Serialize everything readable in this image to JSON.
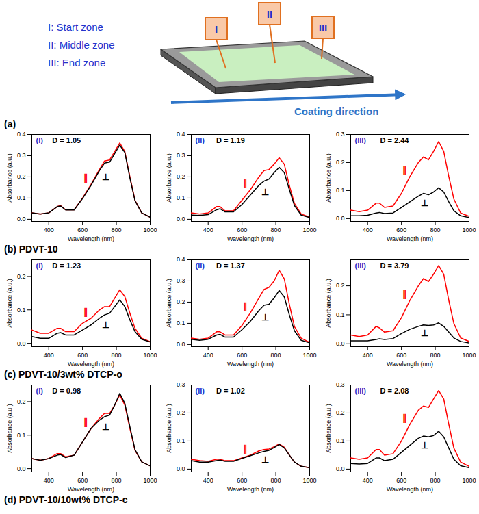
{
  "schematic": {
    "zones": [
      "I: Start zone",
      "II: Middle zone",
      "III: End zone"
    ],
    "boxes": [
      "I",
      "II",
      "III"
    ],
    "arrow_label": "Coating direction"
  },
  "captions": [
    "(a)",
    "(b) PDVT-10",
    "(c) PDVT-10/3wt% DTCP-o",
    "(d) PDVT-10/10wt% DTCP-c"
  ],
  "chart_data": [
    {
      "type": "line",
      "zone": "(I)",
      "title": "D = 1.05",
      "x_label": "Wavelength (nm)",
      "y_label": "Absorbance (a.u.)",
      "x": [
        300,
        350,
        400,
        450,
        470,
        500,
        550,
        600,
        650,
        700,
        730,
        760,
        790,
        820,
        850,
        880,
        910,
        950,
        1000
      ],
      "xlim": [
        300,
        1000
      ],
      "xticks": [
        400,
        600,
        800,
        1000
      ],
      "ylim": [
        -0.01,
        0.4
      ],
      "yticks": [
        {
          "value": 0,
          "label": "0.0"
        },
        0.1,
        0.2,
        0.3,
        0.4
      ],
      "series": [
        {
          "name": "∥",
          "color": "red",
          "values": [
            0.03,
            0.025,
            0.03,
            0.06,
            0.065,
            0.045,
            0.045,
            0.1,
            0.165,
            0.235,
            0.275,
            0.28,
            0.32,
            0.36,
            0.32,
            0.2,
            0.09,
            0.03,
            0.01
          ]
        },
        {
          "name": "⊥",
          "color": "black",
          "values": [
            0.03,
            0.025,
            0.03,
            0.06,
            0.063,
            0.044,
            0.044,
            0.098,
            0.16,
            0.23,
            0.265,
            0.27,
            0.31,
            0.35,
            0.315,
            0.195,
            0.088,
            0.03,
            0.01
          ]
        }
      ]
    },
    {
      "type": "line",
      "zone": "(II)",
      "title": "D = 1.19",
      "x_label": "Wavelength (nm)",
      "y_label": "Absorbance (a.u.)",
      "x": [
        300,
        350,
        400,
        450,
        470,
        500,
        550,
        600,
        650,
        700,
        730,
        760,
        790,
        820,
        850,
        880,
        910,
        950,
        1000
      ],
      "xlim": [
        300,
        1000
      ],
      "xticks": [
        400,
        600,
        800,
        1000
      ],
      "ylim": [
        -0.01,
        0.4
      ],
      "yticks": [
        {
          "value": 0,
          "label": "0.0"
        },
        0.1,
        0.2,
        0.3,
        0.4
      ],
      "series": [
        {
          "name": "∥",
          "color": "red",
          "values": [
            0.03,
            0.025,
            0.03,
            0.06,
            0.06,
            0.04,
            0.04,
            0.09,
            0.14,
            0.2,
            0.23,
            0.235,
            0.26,
            0.29,
            0.26,
            0.16,
            0.075,
            0.025,
            0.01
          ]
        },
        {
          "name": "⊥",
          "color": "black",
          "values": [
            0.02,
            0.018,
            0.022,
            0.045,
            0.05,
            0.035,
            0.035,
            0.07,
            0.115,
            0.16,
            0.18,
            0.19,
            0.22,
            0.245,
            0.22,
            0.14,
            0.065,
            0.02,
            0.008
          ]
        }
      ]
    },
    {
      "type": "line",
      "zone": "(III)",
      "title": "D = 2.44",
      "x_label": "Wavelength (nm)",
      "y_label": "Absorbance (a.u.)",
      "x": [
        300,
        350,
        400,
        450,
        470,
        500,
        550,
        600,
        650,
        700,
        730,
        760,
        790,
        820,
        850,
        880,
        910,
        950,
        1000
      ],
      "xlim": [
        300,
        1000
      ],
      "xticks": [
        400,
        600,
        800,
        1000
      ],
      "ylim": [
        -0.01,
        0.3
      ],
      "yticks": [
        {
          "value": 0,
          "label": "0.0"
        },
        0.1,
        0.2,
        0.3
      ],
      "series": [
        {
          "name": "∥",
          "color": "red",
          "values": [
            0.03,
            0.025,
            0.03,
            0.055,
            0.055,
            0.04,
            0.045,
            0.09,
            0.15,
            0.2,
            0.22,
            0.21,
            0.24,
            0.275,
            0.24,
            0.15,
            0.07,
            0.02,
            0.008
          ]
        },
        {
          "name": "⊥",
          "color": "black",
          "values": [
            0.01,
            0.01,
            0.012,
            0.02,
            0.022,
            0.018,
            0.02,
            0.04,
            0.06,
            0.08,
            0.09,
            0.085,
            0.095,
            0.11,
            0.095,
            0.06,
            0.028,
            0.01,
            0.004
          ]
        }
      ]
    },
    {
      "type": "line",
      "zone": "(I)",
      "title": "D = 1.23",
      "x_label": "Wavelength (nm)",
      "y_label": "Absorbance (a.u.)",
      "x": [
        300,
        350,
        400,
        450,
        470,
        500,
        550,
        600,
        650,
        700,
        730,
        760,
        790,
        820,
        850,
        880,
        910,
        950,
        1000
      ],
      "xlim": [
        300,
        1000
      ],
      "xticks": [
        400,
        600,
        800,
        1000
      ],
      "ylim": [
        -0.01,
        0.25
      ],
      "yticks": [
        {
          "value": 0,
          "label": "0.0"
        },
        0.1,
        0.2
      ],
      "series": [
        {
          "name": "∥",
          "color": "red",
          "values": [
            0.04,
            0.03,
            0.03,
            0.045,
            0.045,
            0.035,
            0.035,
            0.06,
            0.075,
            0.1,
            0.11,
            0.11,
            0.135,
            0.16,
            0.14,
            0.09,
            0.045,
            0.015,
            0.005
          ]
        },
        {
          "name": "⊥",
          "color": "black",
          "values": [
            0.02,
            0.015,
            0.015,
            0.03,
            0.032,
            0.025,
            0.025,
            0.04,
            0.055,
            0.075,
            0.085,
            0.09,
            0.11,
            0.13,
            0.11,
            0.07,
            0.035,
            0.012,
            0.004
          ]
        }
      ]
    },
    {
      "type": "line",
      "zone": "(II)",
      "title": "D = 1.37",
      "x_label": "Wavelength (nm)",
      "y_label": "Absorbance (a.u.)",
      "x": [
        300,
        350,
        400,
        450,
        470,
        500,
        550,
        600,
        650,
        700,
        730,
        760,
        790,
        820,
        850,
        880,
        910,
        950,
        1000
      ],
      "xlim": [
        300,
        1000
      ],
      "xticks": [
        400,
        600,
        800,
        1000
      ],
      "ylim": [
        -0.01,
        0.4
      ],
      "yticks": [
        {
          "value": 0,
          "label": "0.0"
        },
        0.1,
        0.2,
        0.3,
        0.4
      ],
      "series": [
        {
          "name": "∥",
          "color": "red",
          "values": [
            0.03,
            0.025,
            0.03,
            0.06,
            0.06,
            0.045,
            0.045,
            0.09,
            0.15,
            0.22,
            0.26,
            0.27,
            0.3,
            0.35,
            0.31,
            0.19,
            0.085,
            0.03,
            0.01
          ]
        },
        {
          "name": "⊥",
          "color": "black",
          "values": [
            0.025,
            0.02,
            0.025,
            0.045,
            0.048,
            0.035,
            0.035,
            0.07,
            0.11,
            0.16,
            0.185,
            0.19,
            0.22,
            0.255,
            0.225,
            0.14,
            0.065,
            0.02,
            0.008
          ]
        }
      ]
    },
    {
      "type": "line",
      "zone": "(III)",
      "title": "D = 3.79",
      "x_label": "Wavelength (nm)",
      "y_label": "Absorbance (a.u.)",
      "x": [
        300,
        350,
        400,
        450,
        470,
        500,
        550,
        600,
        650,
        700,
        730,
        760,
        790,
        820,
        850,
        880,
        910,
        950,
        1000
      ],
      "xlim": [
        300,
        1000
      ],
      "xticks": [
        400,
        600,
        800,
        1000
      ],
      "ylim": [
        -0.01,
        0.29
      ],
      "yticks": [
        {
          "value": 0,
          "label": "0.0"
        },
        0.1,
        0.2
      ],
      "series": [
        {
          "name": "∥",
          "color": "red",
          "values": [
            0.03,
            0.025,
            0.03,
            0.06,
            0.055,
            0.04,
            0.045,
            0.09,
            0.15,
            0.2,
            0.225,
            0.215,
            0.24,
            0.27,
            0.24,
            0.15,
            0.07,
            0.02,
            0.008
          ]
        },
        {
          "name": "⊥",
          "color": "black",
          "values": [
            0.01,
            0.01,
            0.01,
            0.015,
            0.017,
            0.015,
            0.018,
            0.035,
            0.05,
            0.06,
            0.065,
            0.063,
            0.065,
            0.072,
            0.06,
            0.04,
            0.02,
            0.008,
            0.003
          ]
        }
      ]
    },
    {
      "type": "line",
      "zone": "(I)",
      "title": "D = 0.98",
      "x_label": "Wavelength (nm)",
      "y_label": "Absorbance (a.u.)",
      "x": [
        300,
        350,
        400,
        450,
        470,
        500,
        550,
        600,
        650,
        700,
        730,
        760,
        790,
        820,
        850,
        880,
        910,
        950,
        1000
      ],
      "xlim": [
        300,
        1000
      ],
      "xticks": [
        400,
        600,
        800,
        1000
      ],
      "ylim": [
        -0.01,
        0.25
      ],
      "yticks": [
        {
          "value": 0,
          "label": "0.0"
        },
        0.1,
        0.2
      ],
      "series": [
        {
          "name": "∥",
          "color": "red",
          "values": [
            0.03,
            0.025,
            0.03,
            0.045,
            0.045,
            0.035,
            0.04,
            0.08,
            0.12,
            0.15,
            0.165,
            0.165,
            0.19,
            0.22,
            0.19,
            0.12,
            0.055,
            0.02,
            0.008
          ]
        },
        {
          "name": "⊥",
          "color": "black",
          "values": [
            0.03,
            0.025,
            0.03,
            0.04,
            0.042,
            0.033,
            0.04,
            0.08,
            0.12,
            0.145,
            0.155,
            0.16,
            0.19,
            0.225,
            0.195,
            0.125,
            0.057,
            0.02,
            0.008
          ]
        }
      ]
    },
    {
      "type": "line",
      "zone": "(II)",
      "title": "D = 1.02",
      "x_label": "Wavelength (nm)",
      "y_label": "Absorbance (a.u.)",
      "x": [
        300,
        350,
        400,
        450,
        470,
        500,
        550,
        600,
        650,
        700,
        730,
        760,
        790,
        820,
        850,
        880,
        910,
        950,
        1000
      ],
      "xlim": [
        300,
        1000
      ],
      "xticks": [
        400,
        600,
        800,
        1000
      ],
      "ylim": [
        -0.01,
        0.3
      ],
      "yticks": [
        {
          "value": 0,
          "label": "0.0"
        },
        0.1,
        0.2,
        0.3
      ],
      "series": [
        {
          "name": "∥",
          "color": "red",
          "values": [
            0.035,
            0.03,
            0.028,
            0.035,
            0.035,
            0.03,
            0.03,
            0.04,
            0.05,
            0.065,
            0.07,
            0.072,
            0.08,
            0.09,
            0.078,
            0.05,
            0.025,
            0.01,
            0.005
          ]
        },
        {
          "name": "⊥",
          "color": "black",
          "values": [
            0.03,
            0.025,
            0.025,
            0.03,
            0.032,
            0.028,
            0.028,
            0.038,
            0.048,
            0.058,
            0.063,
            0.067,
            0.077,
            0.088,
            0.076,
            0.05,
            0.025,
            0.01,
            0.005
          ]
        }
      ]
    },
    {
      "type": "line",
      "zone": "(III)",
      "title": "D = 2.08",
      "x_label": "Wavelength (nm)",
      "y_label": "Absorbance (a.u.)",
      "x": [
        300,
        350,
        400,
        450,
        470,
        500,
        550,
        600,
        650,
        700,
        730,
        760,
        790,
        820,
        850,
        880,
        910,
        950,
        1000
      ],
      "xlim": [
        300,
        1000
      ],
      "xticks": [
        400,
        600,
        800,
        1000
      ],
      "ylim": [
        -0.01,
        0.3
      ],
      "yticks": [
        {
          "value": 0,
          "label": "0.0"
        },
        0.1,
        0.2,
        0.3
      ],
      "series": [
        {
          "name": "∥",
          "color": "red",
          "values": [
            0.04,
            0.035,
            0.04,
            0.07,
            0.07,
            0.05,
            0.055,
            0.1,
            0.16,
            0.21,
            0.225,
            0.22,
            0.25,
            0.28,
            0.25,
            0.16,
            0.075,
            0.025,
            0.01
          ]
        },
        {
          "name": "⊥",
          "color": "black",
          "values": [
            0.02,
            0.018,
            0.02,
            0.04,
            0.04,
            0.03,
            0.035,
            0.06,
            0.085,
            0.11,
            0.118,
            0.115,
            0.12,
            0.135,
            0.115,
            0.075,
            0.035,
            0.012,
            0.005
          ]
        }
      ]
    }
  ]
}
